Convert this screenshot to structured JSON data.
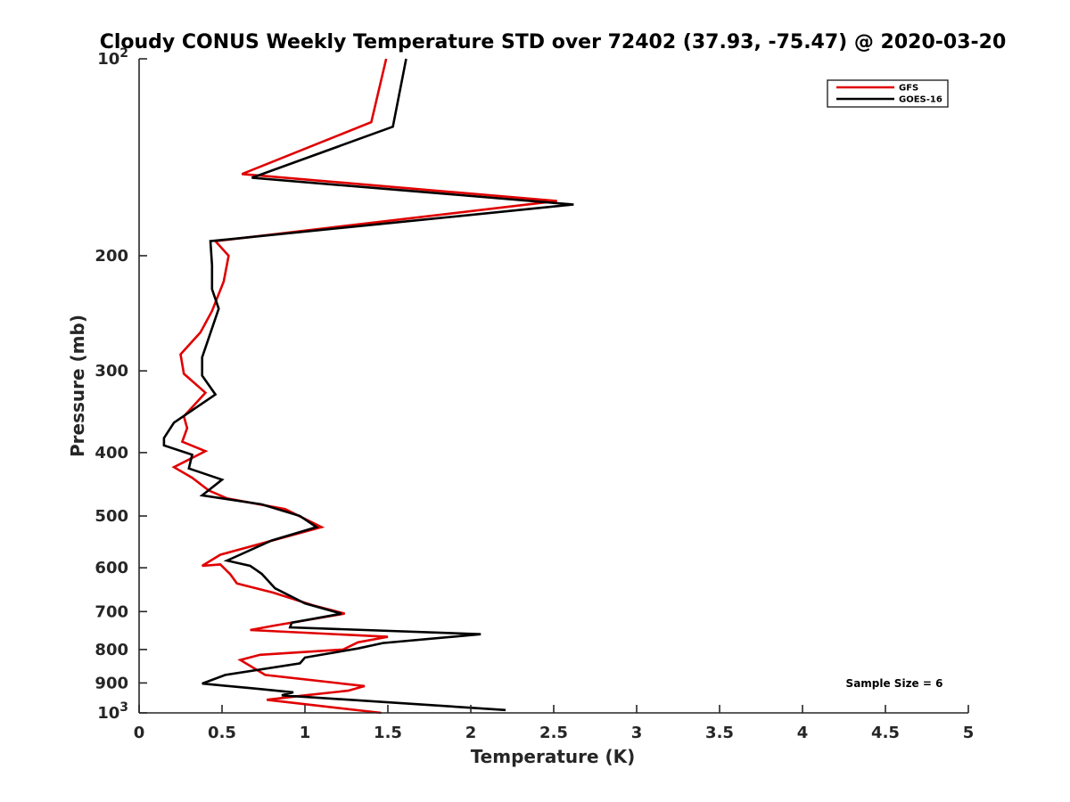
{
  "chart_data": {
    "type": "line",
    "title": "Cloudy CONUS Weekly Temperature STD over 72402 (37.93, -75.47) @ 2020-03-20",
    "xlabel": "Temperature (K)",
    "ylabel": "Pressure (mb)",
    "xlim": [
      0,
      5
    ],
    "ylim": [
      100,
      1000
    ],
    "y_scale": "log",
    "y_direction": "reversed",
    "x_ticks": [
      {
        "value": 0,
        "label": "0"
      },
      {
        "value": 0.5,
        "label": "0.5"
      },
      {
        "value": 1,
        "label": "1"
      },
      {
        "value": 1.5,
        "label": "1.5"
      },
      {
        "value": 2,
        "label": "2"
      },
      {
        "value": 2.5,
        "label": "2.5"
      },
      {
        "value": 3,
        "label": "3"
      },
      {
        "value": 3.5,
        "label": "3.5"
      },
      {
        "value": 4,
        "label": "4"
      },
      {
        "value": 4.5,
        "label": "4.5"
      },
      {
        "value": 5,
        "label": "5"
      }
    ],
    "y_ticks": [
      {
        "value": 100,
        "label": "10",
        "sup": "2"
      },
      {
        "value": 200,
        "label": "200",
        "sup": ""
      },
      {
        "value": 300,
        "label": "300",
        "sup": ""
      },
      {
        "value": 400,
        "label": "400",
        "sup": ""
      },
      {
        "value": 500,
        "label": "500",
        "sup": ""
      },
      {
        "value": 600,
        "label": "600",
        "sup": ""
      },
      {
        "value": 700,
        "label": "700",
        "sup": ""
      },
      {
        "value": 800,
        "label": "800",
        "sup": ""
      },
      {
        "value": 900,
        "label": "900",
        "sup": ""
      },
      {
        "value": 1000,
        "label": "10",
        "sup": "3"
      }
    ],
    "grid": false,
    "legend_position": "top-right",
    "annotation": "Sample Size = 6",
    "series": [
      {
        "name": "GFS",
        "color": "#e00000",
        "points": [
          [
            1.49,
            100
          ],
          [
            1.4,
            125
          ],
          [
            0.62,
            150
          ],
          [
            2.52,
            165
          ],
          [
            0.46,
            190
          ],
          [
            0.54,
            200
          ],
          [
            0.51,
            219
          ],
          [
            0.44,
            243
          ],
          [
            0.37,
            262
          ],
          [
            0.25,
            283
          ],
          [
            0.27,
            303
          ],
          [
            0.4,
            324
          ],
          [
            0.27,
            352
          ],
          [
            0.29,
            367
          ],
          [
            0.26,
            385
          ],
          [
            0.4,
            398
          ],
          [
            0.21,
            421
          ],
          [
            0.32,
            437
          ],
          [
            0.42,
            457
          ],
          [
            0.53,
            470
          ],
          [
            0.88,
            488
          ],
          [
            1.1,
            520
          ],
          [
            0.49,
            573
          ],
          [
            0.38,
            596
          ],
          [
            0.49,
            593
          ],
          [
            0.55,
            614
          ],
          [
            0.59,
            634
          ],
          [
            0.81,
            655
          ],
          [
            1.05,
            685
          ],
          [
            1.24,
            705
          ],
          [
            0.82,
            735
          ],
          [
            0.67,
            747
          ],
          [
            1.5,
            765
          ],
          [
            1.32,
            780
          ],
          [
            1.23,
            800
          ],
          [
            0.73,
            815
          ],
          [
            0.61,
            830
          ],
          [
            0.76,
            875
          ],
          [
            1.36,
            910
          ],
          [
            1.26,
            925
          ],
          [
            1.0,
            940
          ],
          [
            0.77,
            955
          ],
          [
            1.46,
            1000
          ]
        ]
      },
      {
        "name": "GOES-16",
        "color": "#000000",
        "points": [
          [
            1.61,
            100
          ],
          [
            1.53,
            127
          ],
          [
            0.68,
            152
          ],
          [
            2.62,
            167
          ],
          [
            0.43,
            190
          ],
          [
            0.44,
            207
          ],
          [
            0.44,
            225
          ],
          [
            0.48,
            241
          ],
          [
            0.38,
            286
          ],
          [
            0.38,
            305
          ],
          [
            0.46,
            326
          ],
          [
            0.21,
            360
          ],
          [
            0.15,
            380
          ],
          [
            0.15,
            390
          ],
          [
            0.32,
            403
          ],
          [
            0.3,
            423
          ],
          [
            0.5,
            440
          ],
          [
            0.38,
            465
          ],
          [
            0.74,
            480
          ],
          [
            0.97,
            500
          ],
          [
            1.07,
            520
          ],
          [
            0.8,
            545
          ],
          [
            0.53,
            585
          ],
          [
            0.67,
            596
          ],
          [
            0.7,
            603
          ],
          [
            0.74,
            613
          ],
          [
            0.82,
            645
          ],
          [
            1.0,
            680
          ],
          [
            1.22,
            705
          ],
          [
            0.92,
            728
          ],
          [
            0.91,
            740
          ],
          [
            2.06,
            758
          ],
          [
            1.47,
            782
          ],
          [
            1.32,
            797
          ],
          [
            1.0,
            823
          ],
          [
            0.97,
            840
          ],
          [
            0.52,
            875
          ],
          [
            0.38,
            902
          ],
          [
            0.7,
            918
          ],
          [
            0.93,
            930
          ],
          [
            0.86,
            940
          ],
          [
            2.21,
            990
          ]
        ]
      }
    ]
  }
}
